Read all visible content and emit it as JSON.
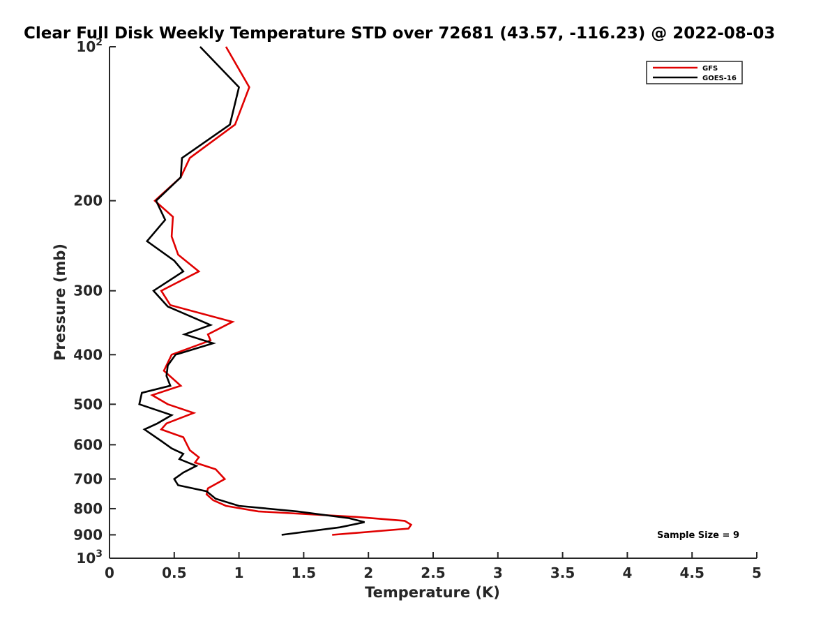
{
  "chart_data": {
    "type": "line",
    "title": "Clear Full Disk Weekly Temperature STD over 72681 (43.57, -116.23) @ 2022-08-03",
    "xlabel": "Temperature (K)",
    "ylabel": "Pressure (mb)",
    "xlim": [
      0,
      5
    ],
    "ylim": [
      100,
      1000
    ],
    "y_scale": "log",
    "y_reversed": true,
    "x_ticks": [
      {
        "value": 0,
        "label": "0"
      },
      {
        "value": 0.5,
        "label": "0.5"
      },
      {
        "value": 1,
        "label": "1"
      },
      {
        "value": 1.5,
        "label": "1.5"
      },
      {
        "value": 2,
        "label": "2"
      },
      {
        "value": 2.5,
        "label": "2.5"
      },
      {
        "value": 3,
        "label": "3"
      },
      {
        "value": 3.5,
        "label": "3.5"
      },
      {
        "value": 4,
        "label": "4"
      },
      {
        "value": 4.5,
        "label": "4.5"
      },
      {
        "value": 5,
        "label": "5"
      }
    ],
    "y_ticks": [
      {
        "value": 100,
        "base": "10",
        "exp": "2"
      },
      {
        "value": 200,
        "label": "200"
      },
      {
        "value": 300,
        "label": "300"
      },
      {
        "value": 400,
        "label": "400"
      },
      {
        "value": 500,
        "label": "500"
      },
      {
        "value": 600,
        "label": "600"
      },
      {
        "value": 700,
        "label": "700"
      },
      {
        "value": 800,
        "label": "800"
      },
      {
        "value": 900,
        "label": "900"
      },
      {
        "value": 1000,
        "base": "10",
        "exp": "3"
      }
    ],
    "grid": false,
    "legend_position": "top-right",
    "annotation": "Sample Size = 9",
    "series": [
      {
        "name": "GFS",
        "color": "#e00000",
        "points": [
          [
            0.9,
            100
          ],
          [
            1.08,
            120
          ],
          [
            0.97,
            142
          ],
          [
            0.62,
            165
          ],
          [
            0.55,
            180
          ],
          [
            0.35,
            200
          ],
          [
            0.49,
            215
          ],
          [
            0.48,
            235
          ],
          [
            0.53,
            255
          ],
          [
            0.69,
            275
          ],
          [
            0.4,
            300
          ],
          [
            0.47,
            320
          ],
          [
            0.95,
            345
          ],
          [
            0.76,
            365
          ],
          [
            0.78,
            375
          ],
          [
            0.48,
            400
          ],
          [
            0.42,
            430
          ],
          [
            0.55,
            460
          ],
          [
            0.33,
            480
          ],
          [
            0.45,
            500
          ],
          [
            0.65,
            520
          ],
          [
            0.44,
            545
          ],
          [
            0.4,
            560
          ],
          [
            0.57,
            580
          ],
          [
            0.62,
            615
          ],
          [
            0.69,
            635
          ],
          [
            0.66,
            650
          ],
          [
            0.82,
            670
          ],
          [
            0.89,
            700
          ],
          [
            0.76,
            730
          ],
          [
            0.75,
            750
          ],
          [
            0.8,
            770
          ],
          [
            0.9,
            790
          ],
          [
            1.15,
            810
          ],
          [
            1.9,
            830
          ],
          [
            2.28,
            845
          ],
          [
            2.33,
            860
          ],
          [
            2.31,
            875
          ],
          [
            1.72,
            900
          ]
        ]
      },
      {
        "name": "GOES-16",
        "color": "#000000",
        "points": [
          [
            0.7,
            100
          ],
          [
            1.0,
            120
          ],
          [
            0.93,
            142
          ],
          [
            0.56,
            165
          ],
          [
            0.55,
            180
          ],
          [
            0.36,
            200
          ],
          [
            0.43,
            218
          ],
          [
            0.29,
            240
          ],
          [
            0.5,
            262
          ],
          [
            0.57,
            275
          ],
          [
            0.34,
            300
          ],
          [
            0.45,
            322
          ],
          [
            0.78,
            350
          ],
          [
            0.58,
            365
          ],
          [
            0.8,
            380
          ],
          [
            0.51,
            400
          ],
          [
            0.45,
            420
          ],
          [
            0.44,
            440
          ],
          [
            0.47,
            460
          ],
          [
            0.25,
            475
          ],
          [
            0.23,
            500
          ],
          [
            0.48,
            525
          ],
          [
            0.37,
            545
          ],
          [
            0.27,
            560
          ],
          [
            0.4,
            590
          ],
          [
            0.48,
            610
          ],
          [
            0.57,
            625
          ],
          [
            0.54,
            640
          ],
          [
            0.67,
            660
          ],
          [
            0.57,
            680
          ],
          [
            0.5,
            700
          ],
          [
            0.53,
            720
          ],
          [
            0.75,
            740
          ],
          [
            0.82,
            765
          ],
          [
            1.0,
            790
          ],
          [
            1.45,
            810
          ],
          [
            1.85,
            835
          ],
          [
            1.97,
            850
          ],
          [
            1.78,
            870
          ],
          [
            1.33,
            900
          ]
        ]
      }
    ]
  }
}
